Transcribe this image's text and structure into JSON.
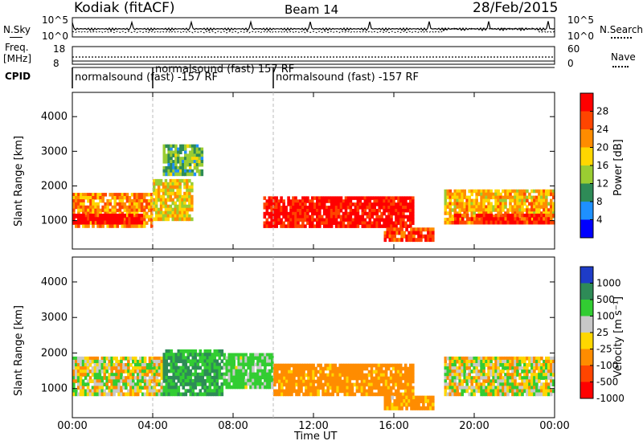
{
  "header": {
    "title": "Kodiak (fitACF)",
    "beam": "Beam 14",
    "date": "28/Feb/2015"
  },
  "top_panels": {
    "nsky_label": "N.Sky",
    "nsearch_label": "N.Search",
    "noise_ticks_left": [
      "10^5",
      "10^0"
    ],
    "noise_ticks_right": [
      "10^5",
      "10^0"
    ],
    "freq_label": "Freq.",
    "freq_unit": "[MHz]",
    "freq_ticks": [
      "18",
      "8"
    ],
    "nave_label": "Nave",
    "nave_ticks": [
      "60",
      "0"
    ],
    "cpid_label": "CPID",
    "cpid_segments": [
      {
        "text": "normalsound (fast) -157 RF",
        "start_hr": 0.0,
        "end_hr": 4.0
      },
      {
        "text": "normalsound (fast) 157 RF",
        "start_hr": 4.0,
        "end_hr": 10.0
      },
      {
        "text": "normalsound (fast) -157 RF",
        "start_hr": 10.0,
        "end_hr": 24.0
      }
    ]
  },
  "axes": {
    "xlabel": "Time UT",
    "xticks": [
      "00:00",
      "04:00",
      "08:00",
      "12:00",
      "16:00",
      "20:00",
      "00:00"
    ],
    "xrange_hr": [
      0,
      24
    ],
    "ylabel": "Slant Range [km]",
    "yticks": [
      "1000",
      "2000",
      "3000",
      "4000"
    ],
    "yrange_km": [
      180,
      4700
    ]
  },
  "power_scale": {
    "label": "Power [dB]",
    "ticks": [
      "28",
      "24",
      "20",
      "16",
      "12",
      "8",
      "4"
    ],
    "colors": [
      "#ff0000",
      "#ff4500",
      "#ff8c00",
      "#ffd700",
      "#9acd32",
      "#2e8b57",
      "#1e90ff",
      "#0000ff"
    ]
  },
  "velocity_scale": {
    "label": "Velocity [m s⁻¹]",
    "ticks": [
      "1000",
      "500",
      "100",
      "25",
      "-25",
      "-100",
      "-500",
      "-1000"
    ],
    "colors": [
      "#1e3cc8",
      "#2e8b57",
      "#32cd32",
      "#c8c8c8",
      "#ffd700",
      "#ff8c00",
      "#ff4500",
      "#ff0000"
    ]
  },
  "chart_data": [
    {
      "type": "heatmap",
      "title": "Power",
      "xlabel": "Time UT",
      "ylabel": "Slant Range [km]",
      "x_unit": "hour UT",
      "xlim": [
        0,
        24
      ],
      "ylim": [
        180,
        4700
      ],
      "colorbar_label": "Power [dB]",
      "colorbar_ticks": [
        28,
        24,
        20,
        16,
        12,
        8,
        4
      ],
      "regions": [
        {
          "t0": 0.0,
          "t1": 4.0,
          "r0": 800,
          "r1": 1800,
          "value_db": 18
        },
        {
          "t0": 0.0,
          "t1": 3.5,
          "r0": 900,
          "r1": 1200,
          "value_db": 28
        },
        {
          "t0": 4.0,
          "t1": 6.0,
          "r0": 1000,
          "r1": 2200,
          "value_db": 14
        },
        {
          "t0": 4.5,
          "t1": 6.5,
          "r0": 2300,
          "r1": 3200,
          "value_db": 8
        },
        {
          "t0": 9.5,
          "t1": 17.0,
          "r0": 800,
          "r1": 1700,
          "value_db": 26
        },
        {
          "t0": 15.5,
          "t1": 18.0,
          "r0": 400,
          "r1": 800,
          "value_db": 22
        },
        {
          "t0": 18.5,
          "t1": 24.0,
          "r0": 900,
          "r1": 1900,
          "value_db": 16
        },
        {
          "t0": 19.0,
          "t1": 24.0,
          "r0": 900,
          "r1": 1200,
          "value_db": 24
        }
      ]
    },
    {
      "type": "heatmap",
      "title": "Velocity",
      "xlabel": "Time UT",
      "ylabel": "Slant Range [km]",
      "x_unit": "hour UT",
      "xlim": [
        0,
        24
      ],
      "ylim": [
        180,
        4700
      ],
      "colorbar_label": "Velocity [m s⁻¹]",
      "colorbar_ticks": [
        1000,
        500,
        100,
        25,
        -25,
        -100,
        -500,
        -1000
      ],
      "regions": [
        {
          "t0": 0.0,
          "t1": 4.5,
          "r0": 800,
          "r1": 1900,
          "value_ms": 0
        },
        {
          "t0": 4.5,
          "t1": 7.5,
          "r0": 800,
          "r1": 2100,
          "value_ms": 300
        },
        {
          "t0": 7.5,
          "t1": 10.0,
          "r0": 1000,
          "r1": 2000,
          "value_ms": 120
        },
        {
          "t0": 10.0,
          "t1": 17.0,
          "r0": 800,
          "r1": 1700,
          "value_ms": -150
        },
        {
          "t0": 15.5,
          "t1": 18.0,
          "r0": 400,
          "r1": 800,
          "value_ms": -120
        },
        {
          "t0": 18.5,
          "t1": 24.0,
          "r0": 800,
          "r1": 1900,
          "value_ms": 0
        }
      ]
    }
  ]
}
